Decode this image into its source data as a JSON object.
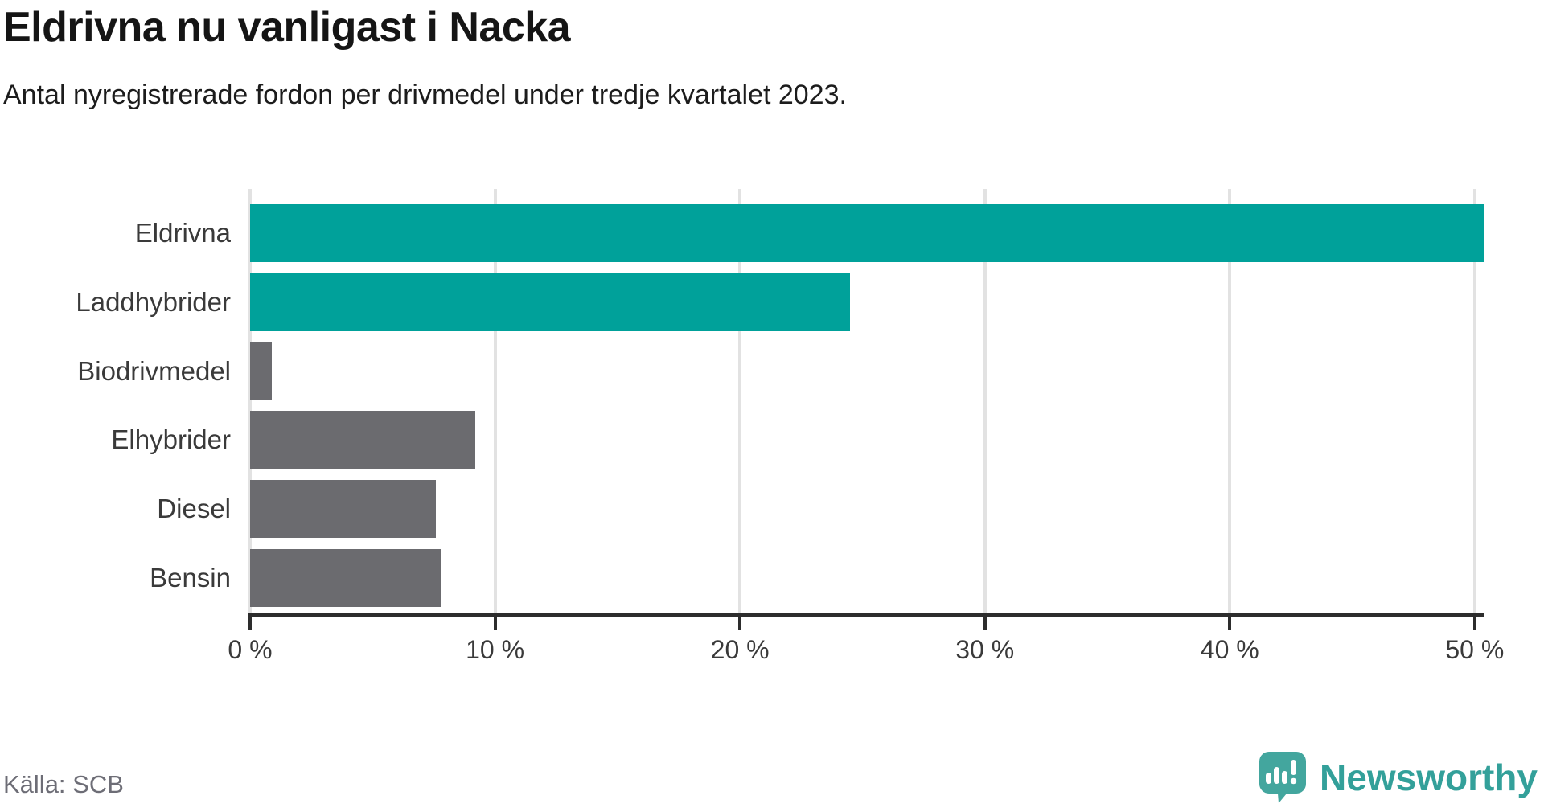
{
  "header": {
    "title": "Eldrivna nu vanligast i Nacka",
    "subtitle": "Antal nyregistrerade fordon per drivmedel under tredje kvartalet 2023."
  },
  "chart_data": {
    "type": "bar",
    "orientation": "horizontal",
    "categories": [
      "Eldrivna",
      "Laddhybrider",
      "Biodrivmedel",
      "Elhybrider",
      "Diesel",
      "Bensin"
    ],
    "values": [
      50.4,
      24.5,
      0.9,
      9.2,
      7.6,
      7.8
    ],
    "unit": "%",
    "xlim": [
      0,
      50.4
    ],
    "xticks": [
      0,
      10,
      20,
      30,
      40,
      50
    ],
    "xtick_labels": [
      "0 %",
      "10 %",
      "20 %",
      "30 %",
      "40 %",
      "50 %"
    ],
    "grid": "vertical-only",
    "legend": "none",
    "highlight_categories": [
      "Eldrivna",
      "Laddhybrider"
    ],
    "colors": {
      "highlight": "#00a19a",
      "default": "#6b6b6f"
    }
  },
  "footer": {
    "source": "Källa: SCB",
    "brand": "Newsworthy"
  },
  "style": {
    "axis_color": "#2d2d2d",
    "grid_color": "#e2e2e2",
    "logo_teal": "#33a09a",
    "logo_bubble": "#43a69e"
  }
}
